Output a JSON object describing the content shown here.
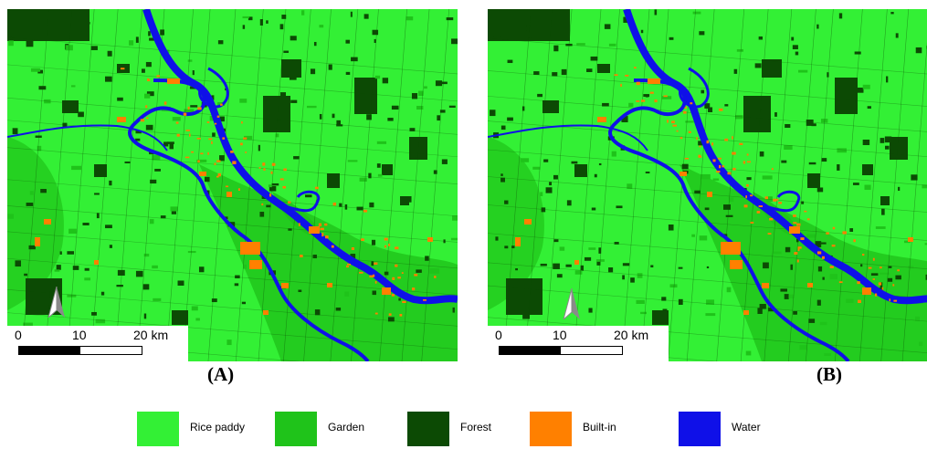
{
  "panels": [
    {
      "id": "A",
      "label": "(A)",
      "scale": {
        "ticks": [
          "0",
          "10",
          "20 km"
        ]
      }
    },
    {
      "id": "B",
      "label": "(B)",
      "scale": {
        "ticks": [
          "0",
          "10",
          "20 km"
        ]
      }
    }
  ],
  "legend": [
    {
      "label": "Rice paddy",
      "color": "#33f035"
    },
    {
      "label": "Garden",
      "color": "#1fc31a"
    },
    {
      "label": "Forest",
      "color": "#0c4a04"
    },
    {
      "label": "Built-in",
      "color": "#ff8000"
    },
    {
      "label": "Water",
      "color": "#0f10e8"
    }
  ],
  "icons": {
    "north_arrow": "north-arrow-icon"
  }
}
